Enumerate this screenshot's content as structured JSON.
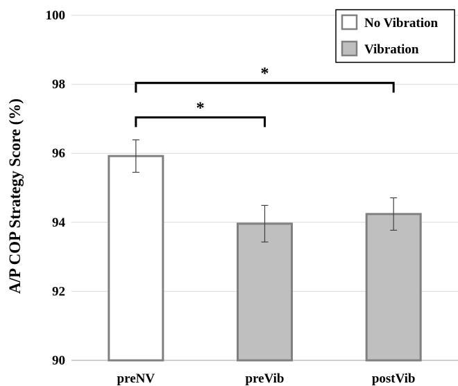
{
  "chart_data": {
    "type": "bar",
    "categories": [
      "preNV",
      "preVib",
      "postVib"
    ],
    "values": [
      95.92,
      93.96,
      94.24
    ],
    "errors": [
      0.47,
      0.53,
      0.47
    ],
    "bar_series": [
      "No Vibration",
      "Vibration",
      "Vibration"
    ],
    "ylabel": "A/P COP Strategy Score (%)",
    "ylim": [
      90,
      100
    ],
    "yticks": [
      90,
      92,
      94,
      96,
      98,
      100
    ],
    "grid": true,
    "legend": {
      "placement": "top-right",
      "entries": [
        {
          "name": "No Vibration",
          "fill": "#ffffff"
        },
        {
          "name": "Vibration",
          "fill": "#bfbfbf"
        }
      ]
    },
    "significance": [
      {
        "from": "preNV",
        "to": "preVib",
        "label": "*",
        "level": 97
      },
      {
        "from": "preNV",
        "to": "postVib",
        "label": "*",
        "level": 98
      }
    ],
    "colors": {
      "bar_edge": "#808080",
      "no_vibration_fill": "#ffffff",
      "vibration_fill": "#bfbfbf",
      "grid": "#d9d9d9",
      "error_bar": "#404040",
      "bracket": "#000000"
    }
  }
}
